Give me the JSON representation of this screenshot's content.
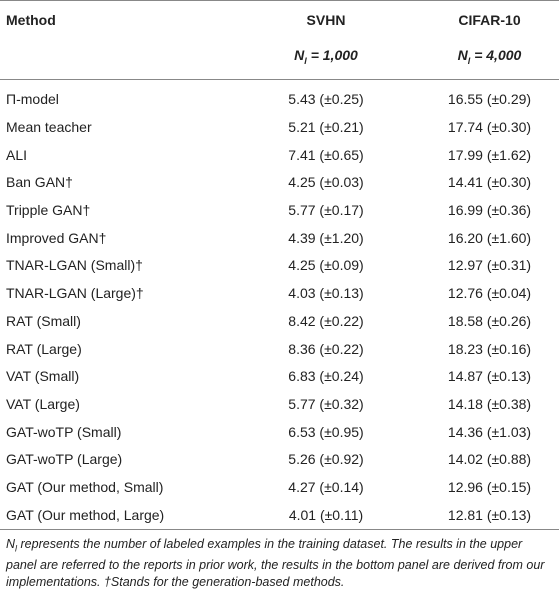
{
  "table": {
    "header": [
      "Method",
      "SVHN",
      "CIFAR-10"
    ],
    "subheader": [
      {
        "var": "N",
        "sub": "l",
        "rest": "= 1,000"
      },
      {
        "var": "N",
        "sub": "l",
        "rest": "= 4,000"
      }
    ],
    "rows": [
      [
        "Π-model",
        "5.43 (±0.25)",
        "16.55 (±0.29)"
      ],
      [
        "Mean teacher",
        "5.21 (±0.21)",
        "17.74 (±0.30)"
      ],
      [
        "ALI",
        "7.41 (±0.65)",
        "17.99 (±1.62)"
      ],
      [
        "Ban GAN†",
        "4.25 (±0.03)",
        "14.41 (±0.30)"
      ],
      [
        "Tripple GAN†",
        "5.77 (±0.17)",
        "16.99 (±0.36)"
      ],
      [
        "Improved GAN†",
        "4.39 (±1.20)",
        "16.20 (±1.60)"
      ],
      [
        "TNAR-LGAN (Small)†",
        "4.25 (±0.09)",
        "12.97 (±0.31)"
      ],
      [
        "TNAR-LGAN (Large)†",
        "4.03 (±0.13)",
        "12.76 (±0.04)"
      ],
      [
        "RAT (Small)",
        "8.42 (±0.22)",
        "18.58 (±0.26)"
      ],
      [
        "RAT (Large)",
        "8.36 (±0.22)",
        "18.23 (±0.16)"
      ],
      [
        "VAT (Small)",
        "6.83 (±0.24)",
        "14.87 (±0.13)"
      ],
      [
        "VAT (Large)",
        "5.77 (±0.32)",
        "14.18 (±0.38)"
      ],
      [
        "GAT-woTP (Small)",
        "6.53 (±0.95)",
        "14.36 (±1.03)"
      ],
      [
        "GAT-woTP (Large)",
        "5.26 (±0.92)",
        "14.02 (±0.88)"
      ],
      [
        "GAT (Our method, Small)",
        "4.27 (±0.14)",
        "12.96 (±0.15)"
      ],
      [
        "GAT (Our method, Large)",
        "4.01 (±0.11)",
        "12.81 (±0.13)"
      ]
    ]
  },
  "footnote": {
    "var": "N",
    "sub": "l",
    "text": "represents the number of labeled examples in the training dataset. The results in the upper panel are referred to the reports in prior work, the results in the bottom panel are derived from our implementations. †Stands for the generation-based methods."
  }
}
